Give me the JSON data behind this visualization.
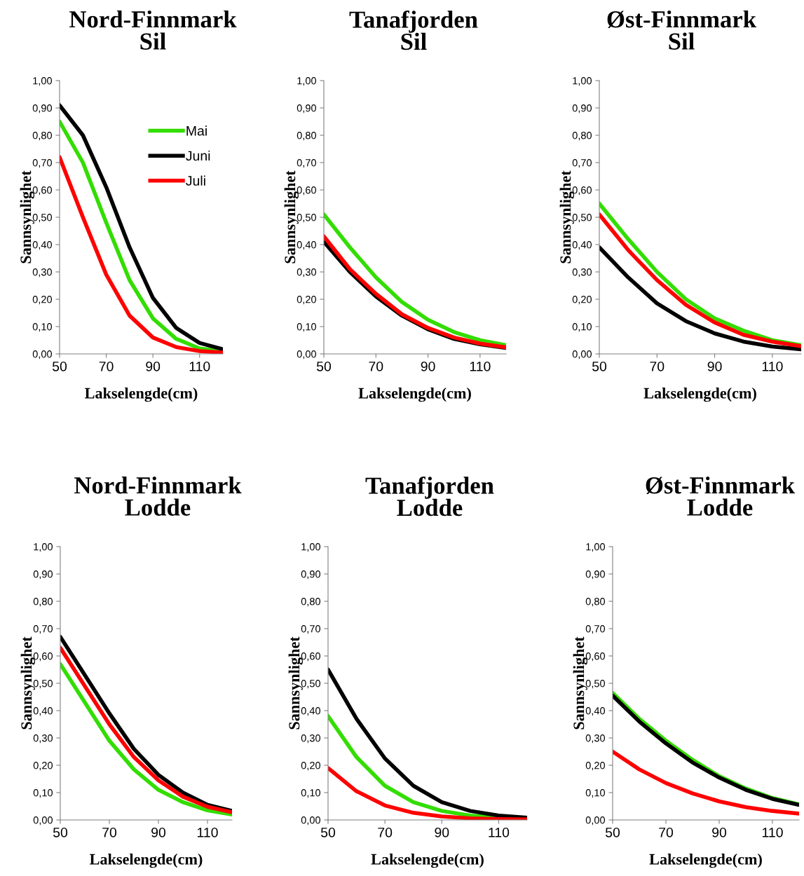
{
  "chart_data": [
    {
      "type": "line",
      "title": "Nord-Finnmark\nSil",
      "xlabel": "Lakselengde(cm)",
      "ylabel": "Sannsynlighet",
      "x": [
        50,
        60,
        70,
        80,
        90,
        100,
        110,
        120
      ],
      "xlim": [
        50,
        120
      ],
      "xticks": [
        50,
        70,
        90,
        110
      ],
      "ylim": [
        0,
        1
      ],
      "yticks": [
        {
          "value": 0,
          "label": "0,00"
        },
        {
          "value": 0.1,
          "label": "0,10"
        },
        {
          "value": 0.2,
          "label": "0,20"
        },
        {
          "value": 0.3,
          "label": "0,30"
        },
        {
          "value": 0.4,
          "label": "0,40"
        },
        {
          "value": 0.5,
          "label": "0,50"
        },
        {
          "value": 0.6,
          "label": "0,60"
        },
        {
          "value": 0.7,
          "label": "0,70"
        },
        {
          "value": 0.8,
          "label": "0,80"
        },
        {
          "value": 0.9,
          "label": "0,90"
        },
        {
          "value": 1,
          "label": "1,00"
        }
      ],
      "grid": false,
      "legend": "top right",
      "series": [
        {
          "name": "Mai",
          "color": "#33dd00",
          "values": [
            0.85,
            0.7,
            0.48,
            0.27,
            0.13,
            0.055,
            0.02,
            0.01
          ]
        },
        {
          "name": "Juni",
          "color": "#000000",
          "values": [
            0.91,
            0.8,
            0.61,
            0.39,
            0.205,
            0.095,
            0.04,
            0.017
          ]
        },
        {
          "name": "Juli",
          "color": "#ff0000",
          "values": [
            0.72,
            0.5,
            0.29,
            0.14,
            0.06,
            0.025,
            0.01,
            0.005
          ]
        }
      ]
    },
    {
      "type": "line",
      "title": "Tanafjorden\nSil",
      "xlabel": "Lakselengde(cm)",
      "ylabel": "Sannsynlighet",
      "x": [
        50,
        60,
        70,
        80,
        90,
        100,
        110,
        120
      ],
      "xlim": [
        50,
        120
      ],
      "xticks": [
        50,
        70,
        90,
        110
      ],
      "ylim": [
        0,
        1
      ],
      "yticks": [
        {
          "value": 0,
          "label": "0,00"
        },
        {
          "value": 0.1,
          "label": "0,10"
        },
        {
          "value": 0.2,
          "label": "0,20"
        },
        {
          "value": 0.3,
          "label": "0,30"
        },
        {
          "value": 0.4,
          "label": "0,40"
        },
        {
          "value": 0.5,
          "label": "0,50"
        },
        {
          "value": 0.6,
          "label": "0,60"
        },
        {
          "value": 0.7,
          "label": "0,70"
        },
        {
          "value": 0.8,
          "label": "0,80"
        },
        {
          "value": 0.9,
          "label": "0,90"
        },
        {
          "value": 1,
          "label": "1,00"
        }
      ],
      "grid": false,
      "series": [
        {
          "color": "#33dd00",
          "values": [
            0.51,
            0.39,
            0.28,
            0.19,
            0.125,
            0.08,
            0.05,
            0.032
          ]
        },
        {
          "color": "#000000",
          "values": [
            0.41,
            0.3,
            0.21,
            0.14,
            0.09,
            0.055,
            0.035,
            0.022
          ]
        },
        {
          "color": "#ff0000",
          "values": [
            0.43,
            0.31,
            0.22,
            0.145,
            0.095,
            0.06,
            0.038,
            0.024
          ]
        }
      ]
    },
    {
      "type": "line",
      "title": "Øst-Finnmark\nSil",
      "xlabel": "Lakselengde(cm)",
      "ylabel": "Sannsynlighet",
      "x": [
        50,
        60,
        70,
        80,
        90,
        100,
        110,
        120
      ],
      "xlim": [
        50,
        120
      ],
      "xticks": [
        50,
        70,
        90,
        110
      ],
      "ylim": [
        0,
        1
      ],
      "yticks": [
        {
          "value": 0,
          "label": "0,00"
        },
        {
          "value": 0.1,
          "label": "0,10"
        },
        {
          "value": 0.2,
          "label": "0,20"
        },
        {
          "value": 0.3,
          "label": "0,30"
        },
        {
          "value": 0.4,
          "label": "0,40"
        },
        {
          "value": 0.5,
          "label": "0,50"
        },
        {
          "value": 0.6,
          "label": "0,60"
        },
        {
          "value": 0.7,
          "label": "0,70"
        },
        {
          "value": 0.8,
          "label": "0,80"
        },
        {
          "value": 0.9,
          "label": "0,90"
        },
        {
          "value": 1,
          "label": "1,00"
        }
      ],
      "grid": false,
      "series": [
        {
          "color": "#33dd00",
          "values": [
            0.55,
            0.42,
            0.3,
            0.2,
            0.13,
            0.085,
            0.05,
            0.032
          ]
        },
        {
          "color": "#000000",
          "values": [
            0.39,
            0.28,
            0.185,
            0.12,
            0.075,
            0.045,
            0.027,
            0.017
          ]
        },
        {
          "color": "#ff0000",
          "values": [
            0.51,
            0.38,
            0.27,
            0.18,
            0.115,
            0.07,
            0.045,
            0.028
          ]
        }
      ]
    },
    {
      "type": "line",
      "title": "Nord-Finnmark\nLodde",
      "xlabel": "Lakselengde(cm)",
      "ylabel": "Sannsynlighet",
      "x": [
        50,
        60,
        70,
        80,
        90,
        100,
        110,
        120
      ],
      "xlim": [
        50,
        120
      ],
      "xticks": [
        50,
        70,
        90,
        110
      ],
      "ylim": [
        0,
        1
      ],
      "yticks": [
        {
          "value": 0,
          "label": "0,00"
        },
        {
          "value": 0.1,
          "label": "0,10"
        },
        {
          "value": 0.2,
          "label": "0,20"
        },
        {
          "value": 0.3,
          "label": "0,30"
        },
        {
          "value": 0.4,
          "label": "0,40"
        },
        {
          "value": 0.5,
          "label": "0,50"
        },
        {
          "value": 0.6,
          "label": "0,60"
        },
        {
          "value": 0.7,
          "label": "0,70"
        },
        {
          "value": 0.8,
          "label": "0,80"
        },
        {
          "value": 0.9,
          "label": "0,90"
        },
        {
          "value": 1,
          "label": "1,00"
        }
      ],
      "grid": false,
      "series": [
        {
          "color": "#33dd00",
          "values": [
            0.57,
            0.43,
            0.29,
            0.185,
            0.11,
            0.065,
            0.035,
            0.02
          ]
        },
        {
          "color": "#000000",
          "values": [
            0.67,
            0.53,
            0.39,
            0.26,
            0.165,
            0.1,
            0.055,
            0.033
          ]
        },
        {
          "color": "#ff0000",
          "values": [
            0.63,
            0.49,
            0.35,
            0.23,
            0.145,
            0.085,
            0.048,
            0.028
          ]
        }
      ]
    },
    {
      "type": "line",
      "title": "Tanafjorden\nLodde",
      "xlabel": "Lakselengde(cm)",
      "ylabel": "Sannsynlighet",
      "x": [
        50,
        60,
        70,
        80,
        90,
        100,
        110,
        120
      ],
      "xlim": [
        50,
        120
      ],
      "xticks": [
        50,
        70,
        90,
        110
      ],
      "ylim": [
        0,
        1
      ],
      "yticks": [
        {
          "value": 0,
          "label": "0,00"
        },
        {
          "value": 0.1,
          "label": "0,10"
        },
        {
          "value": 0.2,
          "label": "0,20"
        },
        {
          "value": 0.3,
          "label": "0,30"
        },
        {
          "value": 0.4,
          "label": "0,40"
        },
        {
          "value": 0.5,
          "label": "0,50"
        },
        {
          "value": 0.6,
          "label": "0,60"
        },
        {
          "value": 0.7,
          "label": "0,70"
        },
        {
          "value": 0.8,
          "label": "0,80"
        },
        {
          "value": 0.9,
          "label": "0,90"
        },
        {
          "value": 1,
          "label": "1,00"
        }
      ],
      "grid": false,
      "series": [
        {
          "color": "#33dd00",
          "values": [
            0.38,
            0.23,
            0.125,
            0.065,
            0.033,
            0.016,
            0.008,
            null
          ]
        },
        {
          "color": "#000000",
          "values": [
            0.55,
            0.37,
            0.225,
            0.125,
            0.065,
            0.033,
            0.016,
            0.008
          ]
        },
        {
          "color": "#ff0000",
          "values": [
            0.19,
            0.105,
            0.053,
            0.026,
            0.013,
            0.006,
            0.003,
            0.002
          ]
        }
      ]
    },
    {
      "type": "line",
      "title": "Øst-Finnmark\nLodde",
      "xlabel": "Lakselengde(cm)",
      "ylabel": "Sannsynlighet",
      "x": [
        50,
        60,
        70,
        80,
        90,
        100,
        110,
        120
      ],
      "xlim": [
        50,
        120
      ],
      "xticks": [
        50,
        70,
        90,
        110
      ],
      "ylim": [
        0,
        1
      ],
      "yticks": [
        {
          "value": 0,
          "label": "0,00"
        },
        {
          "value": 0.1,
          "label": "0,10"
        },
        {
          "value": 0.2,
          "label": "0,20"
        },
        {
          "value": 0.3,
          "label": "0,30"
        },
        {
          "value": 0.4,
          "label": "0,40"
        },
        {
          "value": 0.5,
          "label": "0,50"
        },
        {
          "value": 0.6,
          "label": "0,60"
        },
        {
          "value": 0.7,
          "label": "0,70"
        },
        {
          "value": 0.8,
          "label": "0,80"
        },
        {
          "value": 0.9,
          "label": "0,90"
        },
        {
          "value": 1,
          "label": "1,00"
        }
      ],
      "grid": false,
      "series": [
        {
          "color": "#33dd00",
          "values": [
            0.465,
            0.37,
            0.29,
            0.22,
            0.16,
            0.115,
            0.08,
            0.057
          ]
        },
        {
          "color": "#000000",
          "values": [
            0.455,
            0.36,
            0.28,
            0.21,
            0.155,
            0.11,
            0.077,
            0.055
          ]
        },
        {
          "color": "#ff0000",
          "values": [
            0.25,
            0.185,
            0.135,
            0.097,
            0.068,
            0.047,
            0.033,
            0.023
          ]
        }
      ]
    }
  ]
}
